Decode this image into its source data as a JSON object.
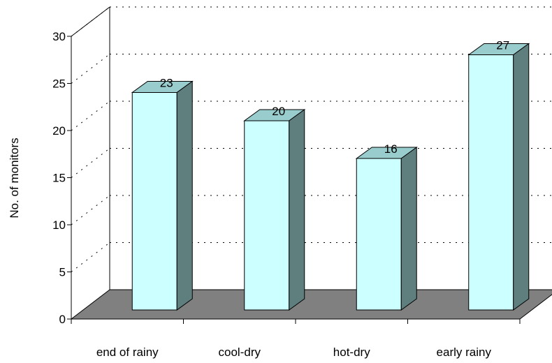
{
  "chart_data": {
    "type": "bar",
    "style": "3d-column",
    "categories": [
      "end of rainy",
      "cool-dry",
      "hot-dry",
      "early rainy"
    ],
    "values": [
      23,
      20,
      16,
      27
    ],
    "data_labels": [
      "23",
      "20",
      "16",
      "27"
    ],
    "ylabel": "No. of monitors",
    "xlabel": "",
    "ylim": [
      0,
      30
    ],
    "yticks": [
      0,
      5,
      10,
      15,
      20,
      25,
      30
    ],
    "ytick_labels": [
      "0",
      "5",
      "10",
      "15",
      "20",
      "25",
      "30"
    ],
    "grid": "dotted horizontal on back wall",
    "legend": "none",
    "colors": {
      "bar_front": "#ccffff",
      "bar_top": "#99cccc",
      "bar_side": "#5f7f7f",
      "floor": "#808080",
      "gridline": "#000000"
    }
  }
}
